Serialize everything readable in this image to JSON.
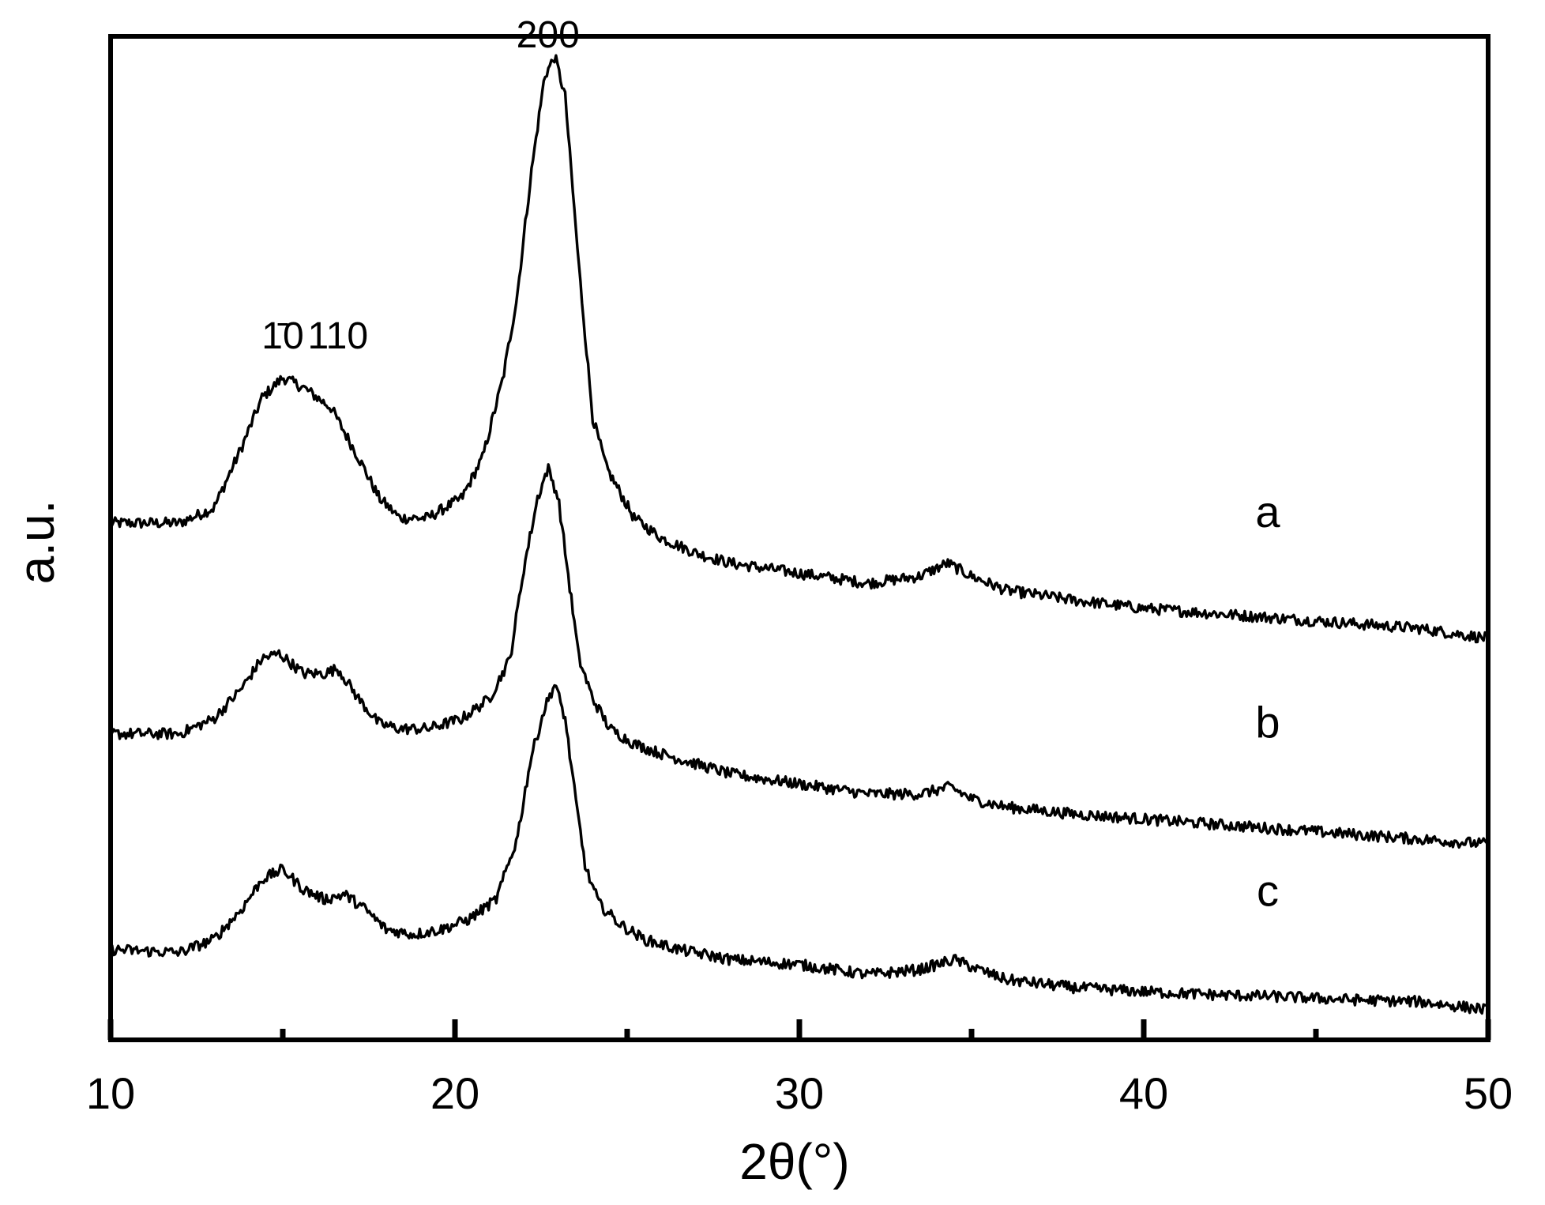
{
  "chart_data": {
    "type": "line",
    "title": "",
    "xlabel": "2θ(°)",
    "ylabel": "a.u.",
    "xlim": [
      10,
      50
    ],
    "ylim": [
      0,
      1
    ],
    "x_major_ticks": [
      10,
      20,
      30,
      40,
      50
    ],
    "x_minor_ticks": [
      15,
      25,
      35,
      45
    ],
    "tick_labels": [
      "10",
      "20",
      "30",
      "40",
      "50"
    ],
    "y_tick_labels": false,
    "grid": false,
    "legend": "none",
    "line_color": "#000000",
    "peak_annotations": [
      {
        "text": "1̄0",
        "x": 15.0
      },
      {
        "text": "110",
        "x": 16.6
      },
      {
        "text": "200",
        "x": 22.7
      }
    ],
    "series": [
      {
        "name": "a",
        "x": [
          10,
          12,
          13,
          13.8,
          14.4,
          15.0,
          15.6,
          16.4,
          17.2,
          17.8,
          18.4,
          19.2,
          20.2,
          20.8,
          21.4,
          21.8,
          22.2,
          22.6,
          22.9,
          23.2,
          23.6,
          24.0,
          24.4,
          25.2,
          26,
          27,
          28,
          30,
          32,
          33.5,
          34.3,
          35,
          36,
          38,
          40,
          42,
          44,
          46,
          48,
          50
        ],
        "y": [
          0.515,
          0.515,
          0.53,
          0.59,
          0.64,
          0.66,
          0.65,
          0.63,
          0.58,
          0.54,
          0.52,
          0.52,
          0.54,
          0.58,
          0.66,
          0.74,
          0.86,
          0.96,
          0.98,
          0.94,
          0.77,
          0.62,
          0.57,
          0.52,
          0.5,
          0.485,
          0.475,
          0.465,
          0.455,
          0.462,
          0.475,
          0.462,
          0.448,
          0.438,
          0.43,
          0.425,
          0.42,
          0.415,
          0.41,
          0.4
        ]
      },
      {
        "name": "b",
        "x": [
          10,
          12,
          13,
          13.8,
          14.4,
          14.9,
          15.6,
          16.2,
          16.6,
          17.2,
          17.8,
          18.4,
          19.2,
          20.2,
          21.0,
          21.6,
          22.0,
          22.4,
          22.7,
          23.0,
          23.3,
          23.6,
          24.0,
          24.5,
          25.2,
          26,
          27,
          28,
          30,
          32,
          33.5,
          34.4,
          35,
          36,
          38,
          40,
          42,
          44,
          46,
          48,
          50
        ],
        "y": [
          0.305,
          0.305,
          0.32,
          0.35,
          0.38,
          0.385,
          0.365,
          0.365,
          0.37,
          0.34,
          0.315,
          0.31,
          0.31,
          0.32,
          0.34,
          0.38,
          0.47,
          0.54,
          0.57,
          0.54,
          0.46,
          0.38,
          0.34,
          0.31,
          0.295,
          0.285,
          0.275,
          0.265,
          0.255,
          0.245,
          0.245,
          0.252,
          0.24,
          0.232,
          0.225,
          0.22,
          0.215,
          0.21,
          0.205,
          0.2,
          0.195
        ]
      },
      {
        "name": "c",
        "x": [
          10,
          12,
          13,
          13.8,
          14.4,
          15.0,
          15.6,
          16.2,
          16.8,
          17.4,
          18.0,
          18.8,
          19.6,
          20.4,
          21.2,
          21.8,
          22.2,
          22.6,
          22.9,
          23.2,
          23.5,
          23.8,
          24.2,
          24.8,
          25.5,
          26.5,
          28,
          30,
          32,
          33.5,
          34.5,
          35.2,
          36,
          38,
          40,
          42,
          44,
          46,
          48,
          50
        ],
        "y": [
          0.09,
          0.087,
          0.1,
          0.13,
          0.16,
          0.17,
          0.15,
          0.14,
          0.145,
          0.13,
          0.11,
          0.105,
          0.11,
          0.12,
          0.14,
          0.2,
          0.28,
          0.33,
          0.355,
          0.32,
          0.24,
          0.17,
          0.135,
          0.115,
          0.1,
          0.09,
          0.08,
          0.075,
          0.065,
          0.07,
          0.08,
          0.07,
          0.06,
          0.052,
          0.048,
          0.045,
          0.043,
          0.04,
          0.038,
          0.03
        ]
      }
    ]
  }
}
